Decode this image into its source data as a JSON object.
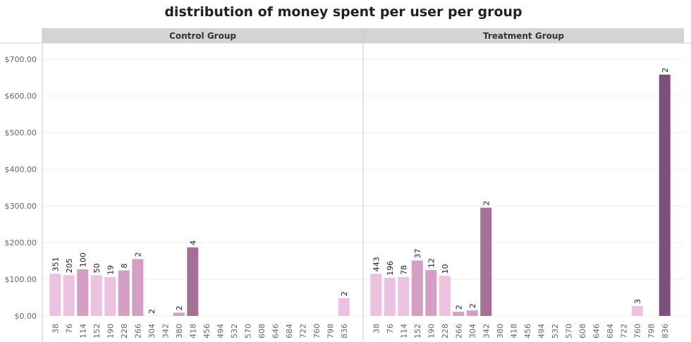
{
  "title": "distribution of money spent per user per group",
  "chart_data": {
    "type": "bar",
    "title": "distribution of money spent per user per group",
    "xlabel": "",
    "ylabel": "",
    "ylim": [
      0,
      740
    ],
    "y_ticks": [
      "$0.00",
      "$100.00",
      "$200.00",
      "$300.00",
      "$400.00",
      "$500.00",
      "$600.00",
      "$700.00"
    ],
    "y_tick_values": [
      0,
      100,
      200,
      300,
      400,
      500,
      600,
      700
    ],
    "categories": [
      "38",
      "76",
      "114",
      "152",
      "190",
      "228",
      "266",
      "304",
      "342",
      "380",
      "418",
      "456",
      "494",
      "532",
      "570",
      "608",
      "646",
      "684",
      "722",
      "760",
      "798",
      "836"
    ],
    "grid": true,
    "panels": [
      {
        "name": "Control Group",
        "values": [
          115,
          111,
          127,
          111,
          106,
          124,
          155,
          0,
          0,
          9,
          187,
          null,
          null,
          null,
          null,
          null,
          null,
          null,
          null,
          null,
          null,
          48
        ],
        "counts": [
          "351",
          "205",
          "100",
          "50",
          "19",
          "8",
          "2",
          "2",
          "",
          "2",
          "4",
          "",
          "",
          "",
          "",
          "",
          "",
          "",
          "",
          "",
          "",
          "2"
        ]
      },
      {
        "name": "Treatment Group",
        "values": [
          115,
          104,
          106,
          151,
          125,
          109,
          11,
          15,
          295,
          null,
          null,
          null,
          null,
          null,
          null,
          null,
          null,
          null,
          null,
          27,
          null,
          658
        ],
        "counts": [
          "443",
          "196",
          "78",
          "37",
          "12",
          "10",
          "2",
          "2",
          "2",
          "",
          "",
          "",
          "",
          "",
          "",
          "",
          "",
          "",
          "",
          "3",
          "",
          "2"
        ]
      }
    ],
    "colors": {
      "low": "#ebc3e0",
      "mid": "#d49ec5",
      "high": "#a56f98",
      "max": "#7d4f7b"
    }
  }
}
